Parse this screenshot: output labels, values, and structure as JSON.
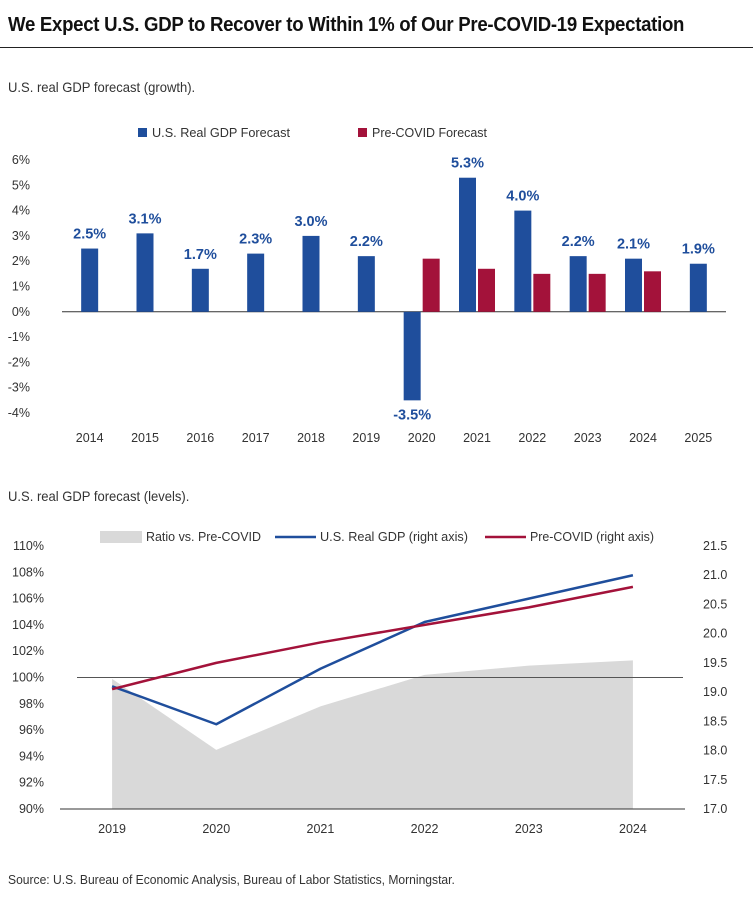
{
  "title": "We Expect U.S. GDP to Recover to Within 1% of Our Pre-COVID-19 Expectation",
  "chart1_subtitle": "U.S. real GDP forecast (growth).",
  "chart2_subtitle": "U.S. real GDP forecast (levels).",
  "source": "Source: U.S. Bureau of Economic Analysis, Bureau of Labor Statistics, Morningstar.",
  "colors": {
    "blue": "#1f4e9c",
    "red": "#a3123a",
    "gray": "#d9d9d9"
  },
  "chart_data": [
    {
      "type": "bar",
      "categories": [
        "2014",
        "2015",
        "2016",
        "2017",
        "2018",
        "2019",
        "2020",
        "2021",
        "2022",
        "2023",
        "2024",
        "2025"
      ],
      "series": [
        {
          "name": "U.S. Real GDP Forecast",
          "values": [
            2.5,
            3.1,
            1.7,
            2.3,
            3.0,
            2.2,
            -3.5,
            5.3,
            4.0,
            2.2,
            2.1,
            1.9
          ]
        },
        {
          "name": "Pre-COVID Forecast",
          "values": [
            null,
            null,
            null,
            null,
            null,
            null,
            2.1,
            1.7,
            1.5,
            1.5,
            1.6,
            null
          ]
        }
      ],
      "data_labels": [
        "2.5%",
        "3.1%",
        "1.7%",
        "2.3%",
        "3.0%",
        "2.2%",
        "-3.5%",
        "5.3%",
        "4.0%",
        "2.2%",
        "2.1%",
        "1.9%"
      ],
      "ylim": [
        -4,
        6
      ],
      "yticks": [
        "-4%",
        "-3%",
        "-2%",
        "-1%",
        "0%",
        "1%",
        "2%",
        "3%",
        "4%",
        "5%",
        "6%"
      ],
      "legend_position": "top",
      "grid": false
    },
    {
      "type": "line",
      "categories": [
        "2019",
        "2020",
        "2021",
        "2022",
        "2023",
        "2024"
      ],
      "series": [
        {
          "name": "Ratio vs. Pre-COVID",
          "kind": "area",
          "axis": "left",
          "values": [
            99.9,
            94.5,
            97.8,
            100.2,
            100.9,
            101.3
          ]
        },
        {
          "name": "U.S. Real GDP (right axis)",
          "kind": "line",
          "axis": "right",
          "values": [
            19.1,
            18.45,
            19.4,
            20.2,
            20.6,
            21.0
          ]
        },
        {
          "name": "Pre-COVID (right axis)",
          "kind": "line",
          "axis": "right",
          "values": [
            19.05,
            19.5,
            19.85,
            20.15,
            20.45,
            20.8
          ]
        }
      ],
      "reference_line": 100,
      "ylim_left": [
        90,
        110
      ],
      "yticks_left": [
        "90%",
        "92%",
        "94%",
        "96%",
        "98%",
        "100%",
        "102%",
        "104%",
        "106%",
        "108%",
        "110%"
      ],
      "ylim_right": [
        17.0,
        21.5
      ],
      "yticks_right": [
        "17.0",
        "17.5",
        "18.0",
        "18.5",
        "19.0",
        "19.5",
        "20.0",
        "20.5",
        "21.0",
        "21.5"
      ],
      "legend_position": "top",
      "grid": false
    }
  ]
}
